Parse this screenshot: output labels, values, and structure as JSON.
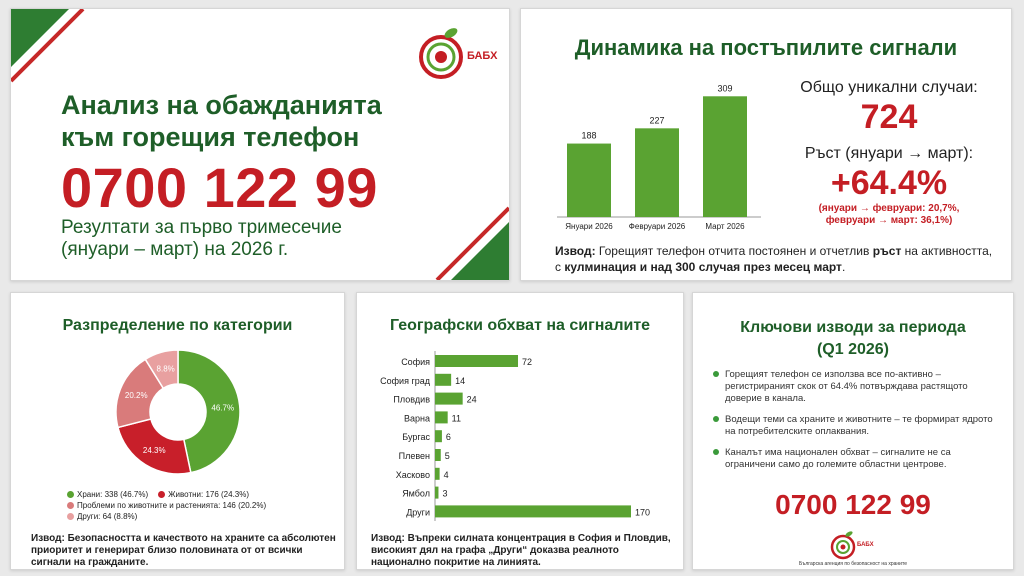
{
  "intro": {
    "title_line1": "Анализ на обажданията",
    "title_line2": "към горещия телефон",
    "phone": "0700 122 99",
    "subtitle_line1": "Резултати за първо тримесечие",
    "subtitle_line2": "(януари – март) на 2026 г.",
    "logo_text": "БАБХ"
  },
  "dynamics": {
    "title": "Динамика на постъпилите сигнали",
    "total_label": "Общо уникални случаи:",
    "total_value": "724",
    "growth_label": "Ръст (януари → март):",
    "growth_value": "+64.4%",
    "growth_detail_line1": "(януари → февруари: 20,7%,",
    "growth_detail_line2": "февруари → март: 36,1%)",
    "conclusion_label": "Извод:",
    "conclusion_part1": " Горещият телефон отчита постоянен и отчетлив ",
    "conclusion_bold1": "ръст",
    "conclusion_part2": " на активността, с ",
    "conclusion_bold2": "кулминация и над 300 случая през месец март",
    "conclusion_end": "."
  },
  "chart_data": [
    {
      "type": "bar",
      "categories": [
        "Януари 2026",
        "Февруари 2026",
        "Март 2026"
      ],
      "values": [
        188,
        227,
        309
      ],
      "ylim": [
        0,
        320
      ]
    },
    {
      "type": "pie",
      "title": "Разпределение по категории",
      "series": [
        {
          "name": "Храни",
          "value": 338,
          "percent": "46.7%",
          "color": "#5aa332"
        },
        {
          "name": "Животни",
          "value": 176,
          "percent": "24.3%",
          "color": "#c81f2a"
        },
        {
          "name": "Проблеми по животните и растенията",
          "value": 146,
          "percent": "20.2%",
          "color": "#d97b7b"
        },
        {
          "name": "Други",
          "value": 64,
          "percent": "8.8%",
          "color": "#e8a0a0"
        }
      ],
      "legend_labels": [
        "Храни: 338 (46.7%)",
        "Животни: 176 (24.3%)",
        "Проблеми по животните и растенията: 146 (20.2%)",
        "Други: 64 (8.8%)"
      ]
    },
    {
      "type": "bar",
      "orientation": "horizontal",
      "title": "Географски обхват на сигналите",
      "categories": [
        "София",
        "София град",
        "Пловдив",
        "Варна",
        "Бургас",
        "Плевен",
        "Хасково",
        "Ямбол",
        "Други"
      ],
      "values": [
        72,
        14,
        24,
        11,
        6,
        5,
        4,
        3,
        170
      ],
      "xlim": [
        0,
        170
      ]
    }
  ],
  "categories_panel": {
    "conclusion_label": "Извод:",
    "conclusion_text": " Безопасността и качеството на храните са абсолютен приоритет и генерират близо половината от от всички сигнали на гражданите."
  },
  "geo_panel": {
    "conclusion_label": "Извод:",
    "conclusion_text": " Въпреки силната концентрация в София и Пловдив, високият дял на графа „Други“ доказва реалното национално покритие на линията."
  },
  "findings": {
    "title_line1": "Ключови изводи за периода",
    "title_line2": "(Q1 2026)",
    "items": [
      "Горещият телефон се използва все по-активно – регистрираният скок от 64.4% потвърждава растящото доверие в канала.",
      "Водещи теми са храните и животните – те формират ядрото на потребителските оплаквания.",
      "Каналът има национален обхват – сигналите не са ограничени само до големите областни центрове."
    ],
    "phone": "0700 122 99",
    "logo_text": "БАБХ",
    "agency": "Българска агенция по безопасност на храните"
  },
  "colors": {
    "brand_green": "#1e5e28",
    "bar_green": "#5aa332",
    "accent_red": "#c41e24"
  }
}
